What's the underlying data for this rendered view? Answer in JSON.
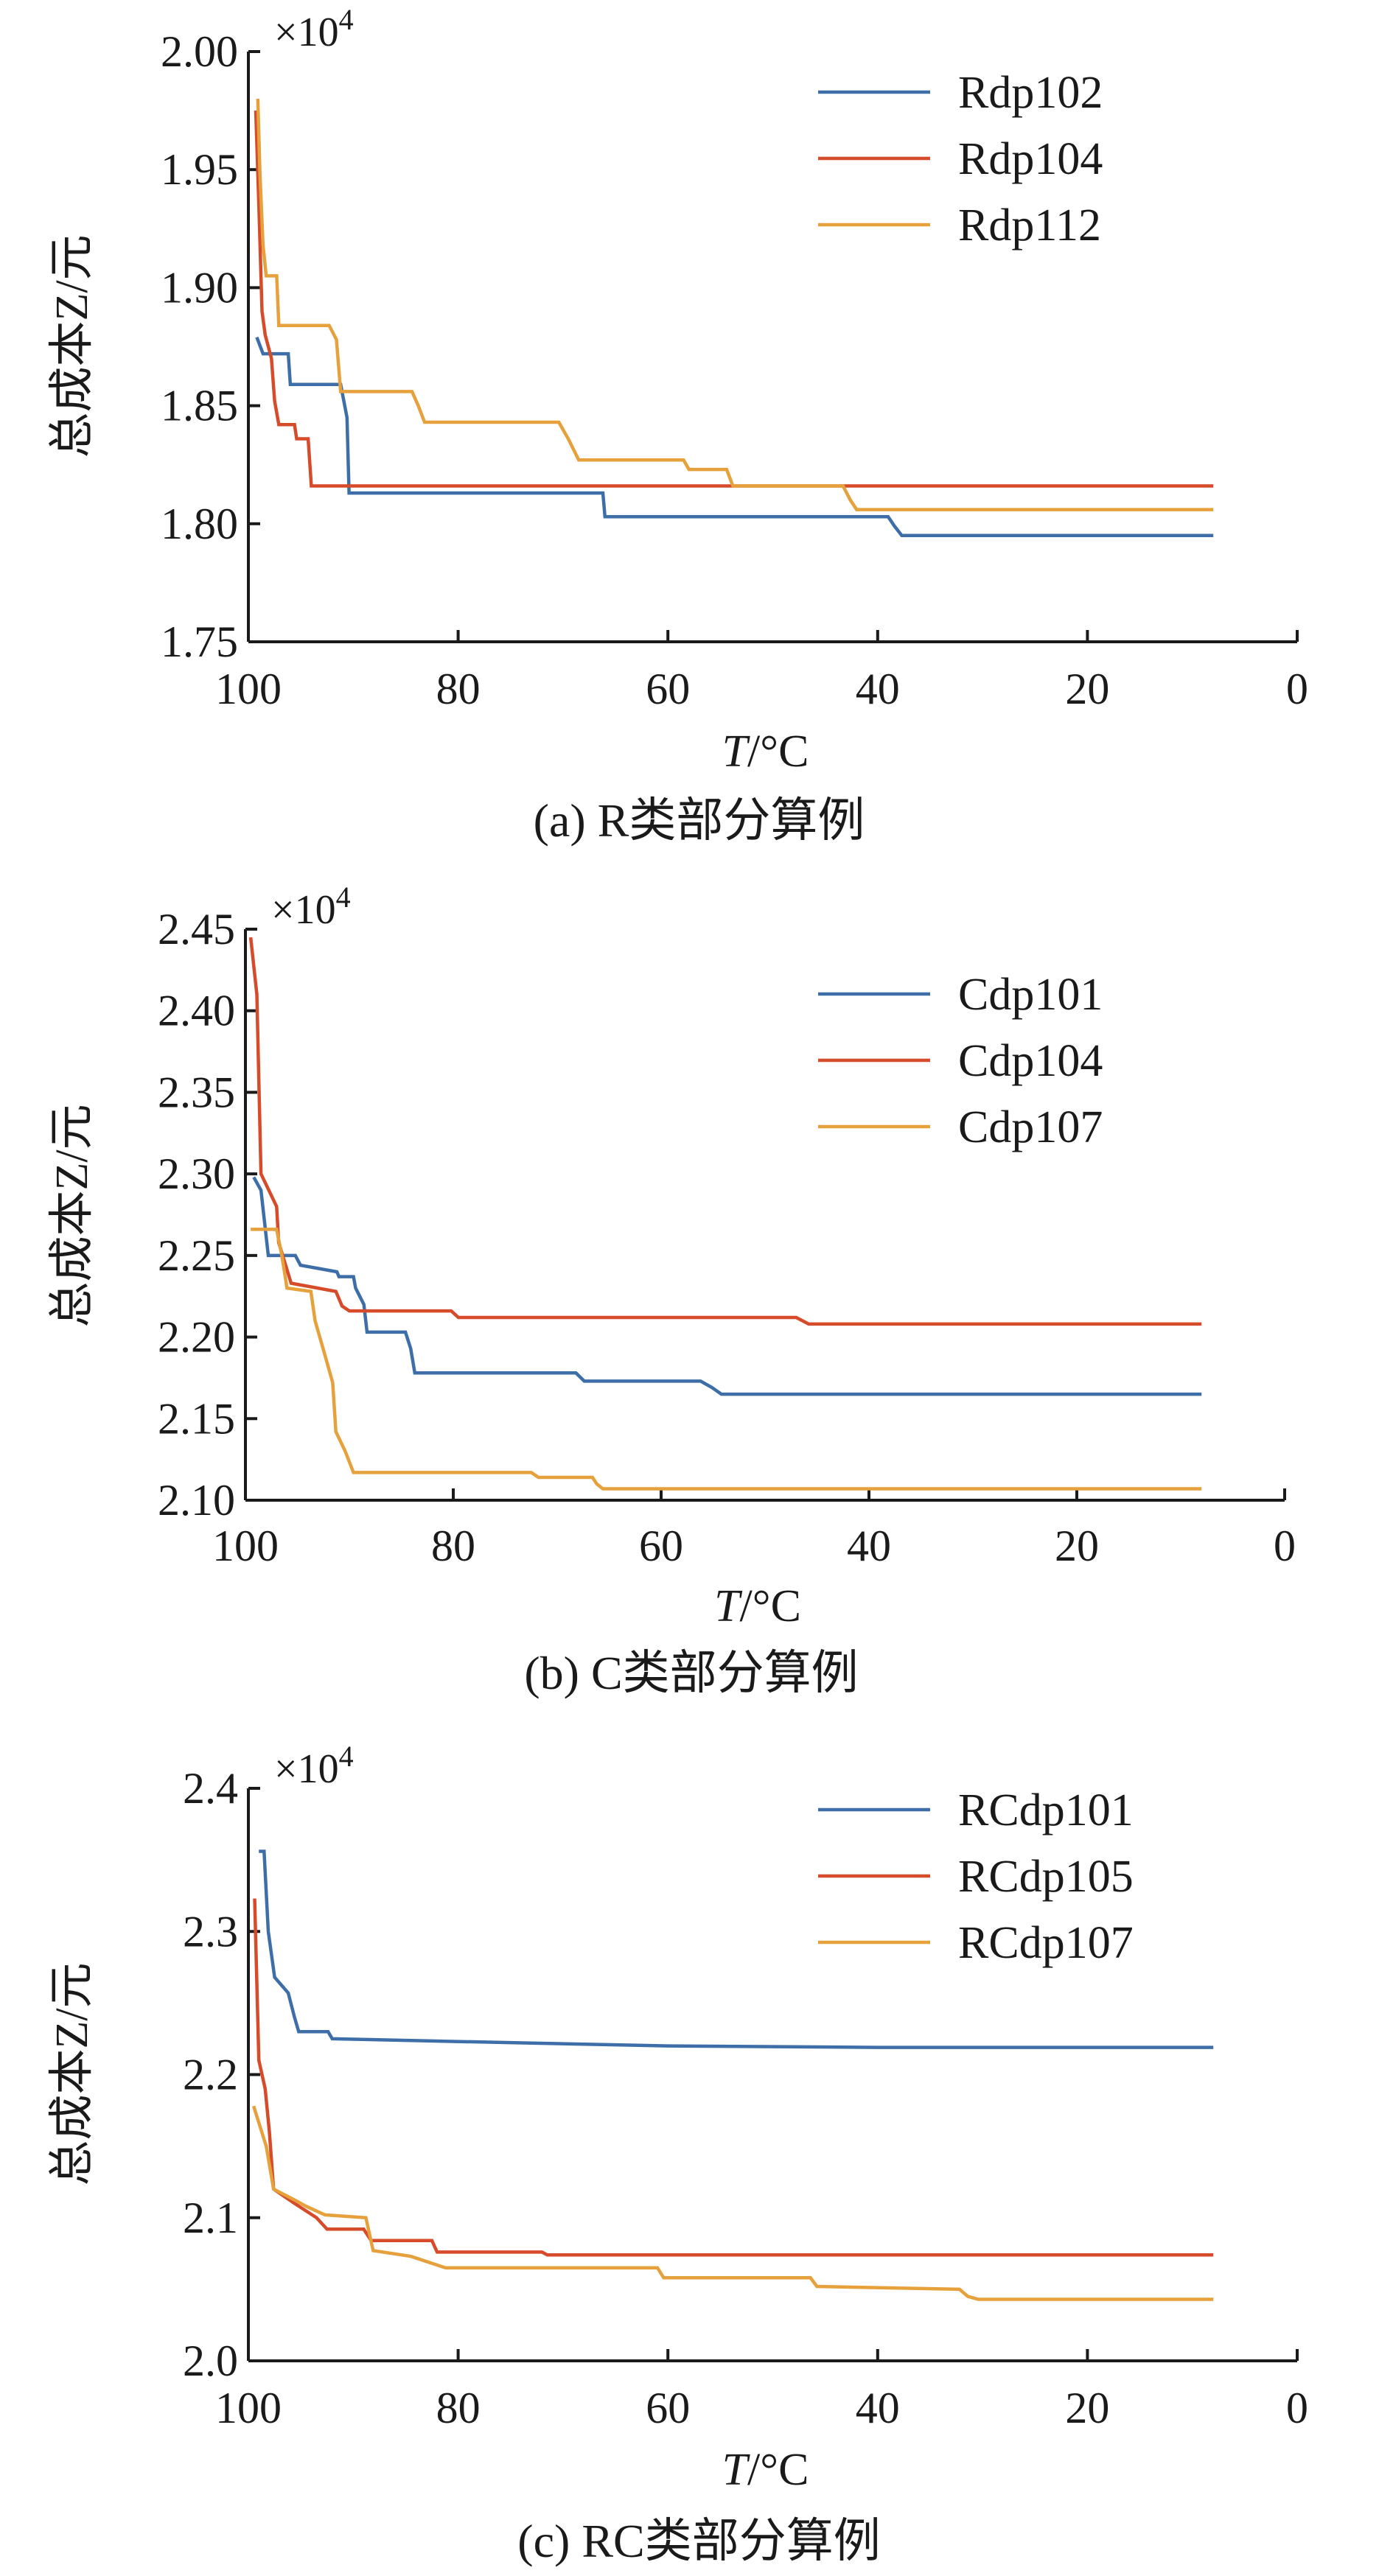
{
  "colors": {
    "blue": "#3d6ea8",
    "red": "#d64b2a",
    "yellow": "#e6a13c",
    "axis": "#1a1a1a"
  },
  "chart_data": [
    {
      "type": "line",
      "caption": "(a) R类部分算例",
      "xlabel_italic": "T",
      "xlabel_unit": "/°C",
      "ylabel": "总成本Z/元",
      "exponent_prefix": "×10",
      "exponent_power": "4",
      "xlim": [
        100,
        0
      ],
      "ylim": [
        1.75,
        2.0
      ],
      "xticks": [
        100,
        80,
        60,
        40,
        20,
        0
      ],
      "xtick_labels": [
        "100",
        "80",
        "60",
        "40",
        "20",
        "0"
      ],
      "yticks": [
        1.75,
        1.8,
        1.85,
        1.9,
        1.95,
        2.0
      ],
      "ytick_labels": [
        "1.75",
        "1.80",
        "1.85",
        "1.90",
        "1.95",
        "2.00"
      ],
      "legend_position": "top-right",
      "series": [
        {
          "name": "Rdp102",
          "color": "blue",
          "points": [
            [
              99.2,
              1.879
            ],
            [
              98.6,
              1.872
            ],
            [
              96.2,
              1.872
            ],
            [
              96,
              1.859
            ],
            [
              91.2,
              1.859
            ],
            [
              90.6,
              1.845
            ],
            [
              90.4,
              1.813
            ],
            [
              66.2,
              1.813
            ],
            [
              66,
              1.803
            ],
            [
              39,
              1.803
            ],
            [
              38.4,
              1.799
            ],
            [
              37.7,
              1.795
            ],
            [
              8,
              1.795
            ]
          ]
        },
        {
          "name": "Rdp104",
          "color": "red",
          "points": [
            [
              99.3,
              1.975
            ],
            [
              99,
              1.935
            ],
            [
              98.7,
              1.89
            ],
            [
              98.4,
              1.88
            ],
            [
              97.8,
              1.87
            ],
            [
              97.5,
              1.852
            ],
            [
              97.1,
              1.842
            ],
            [
              95.6,
              1.842
            ],
            [
              95.4,
              1.836
            ],
            [
              94.3,
              1.836
            ],
            [
              94,
              1.816
            ],
            [
              8,
              1.816
            ]
          ]
        },
        {
          "name": "Rdp112",
          "color": "yellow",
          "points": [
            [
              99.1,
              1.98
            ],
            [
              98.9,
              1.948
            ],
            [
              98.6,
              1.918
            ],
            [
              98.3,
              1.905
            ],
            [
              97.3,
              1.905
            ],
            [
              97.1,
              1.884
            ],
            [
              92.3,
              1.884
            ],
            [
              91.6,
              1.878
            ],
            [
              91.2,
              1.856
            ],
            [
              84.4,
              1.856
            ],
            [
              83.8,
              1.85
            ],
            [
              83.2,
              1.843
            ],
            [
              70.4,
              1.843
            ],
            [
              69.5,
              1.836
            ],
            [
              68.5,
              1.827
            ],
            [
              58.5,
              1.827
            ],
            [
              58,
              1.823
            ],
            [
              54.4,
              1.823
            ],
            [
              53.8,
              1.816
            ],
            [
              43.3,
              1.816
            ],
            [
              42.6,
              1.81
            ],
            [
              42,
              1.806
            ],
            [
              8,
              1.806
            ]
          ]
        }
      ]
    },
    {
      "type": "line",
      "caption": "(b) C类部分算例",
      "xlabel_italic": "T",
      "xlabel_unit": "/°C",
      "ylabel": "总成本Z/元",
      "exponent_prefix": "×10",
      "exponent_power": "4",
      "xlim": [
        100,
        0
      ],
      "ylim": [
        2.1,
        2.45
      ],
      "xticks": [
        100,
        80,
        60,
        40,
        20,
        0
      ],
      "xtick_labels": [
        "100",
        "80",
        "60",
        "40",
        "20",
        "0"
      ],
      "yticks": [
        2.1,
        2.15,
        2.2,
        2.25,
        2.3,
        2.35,
        2.4,
        2.45
      ],
      "ytick_labels": [
        "2.10",
        "2.15",
        "2.20",
        "2.25",
        "2.30",
        "2.35",
        "2.40",
        "2.45"
      ],
      "legend_position": "top-right",
      "series": [
        {
          "name": "Cdp101",
          "color": "blue",
          "points": [
            [
              99.2,
              2.298
            ],
            [
              98.5,
              2.29
            ],
            [
              97.8,
              2.25
            ],
            [
              95.2,
              2.25
            ],
            [
              94.7,
              2.244
            ],
            [
              91.2,
              2.24
            ],
            [
              91,
              2.237
            ],
            [
              89.6,
              2.237
            ],
            [
              89.4,
              2.23
            ],
            [
              88.6,
              2.22
            ],
            [
              88.3,
              2.203
            ],
            [
              84.6,
              2.203
            ],
            [
              84.1,
              2.193
            ],
            [
              83.7,
              2.178
            ],
            [
              68.2,
              2.178
            ],
            [
              67.4,
              2.173
            ],
            [
              56.2,
              2.173
            ],
            [
              55.1,
              2.169
            ],
            [
              54.2,
              2.165
            ],
            [
              8,
              2.165
            ]
          ]
        },
        {
          "name": "Cdp104",
          "color": "red",
          "points": [
            [
              99.5,
              2.445
            ],
            [
              98.9,
              2.41
            ],
            [
              98.5,
              2.3
            ],
            [
              97,
              2.28
            ],
            [
              96.8,
              2.258
            ],
            [
              95.6,
              2.233
            ],
            [
              91.3,
              2.228
            ],
            [
              90.7,
              2.219
            ],
            [
              90,
              2.216
            ],
            [
              80.2,
              2.216
            ],
            [
              79.5,
              2.212
            ],
            [
              47,
              2.212
            ],
            [
              45.8,
              2.208
            ],
            [
              8,
              2.208
            ]
          ]
        },
        {
          "name": "Cdp107",
          "color": "yellow",
          "points": [
            [
              99.5,
              2.266
            ],
            [
              97,
              2.266
            ],
            [
              96.5,
              2.25
            ],
            [
              96,
              2.23
            ],
            [
              93.7,
              2.228
            ],
            [
              93.3,
              2.21
            ],
            [
              92.4,
              2.19
            ],
            [
              91.6,
              2.172
            ],
            [
              91.3,
              2.142
            ],
            [
              90.4,
              2.13
            ],
            [
              89.6,
              2.117
            ],
            [
              72.5,
              2.117
            ],
            [
              71.8,
              2.114
            ],
            [
              66.6,
              2.114
            ],
            [
              66.2,
              2.11
            ],
            [
              65.6,
              2.107
            ],
            [
              8,
              2.107
            ]
          ]
        }
      ]
    },
    {
      "type": "line",
      "caption": "(c) RC类部分算例",
      "xlabel_italic": "T",
      "xlabel_unit": "/°C",
      "ylabel": "总成本Z/元",
      "exponent_prefix": "×10",
      "exponent_power": "4",
      "xlim": [
        100,
        0
      ],
      "ylim": [
        2.0,
        2.4
      ],
      "xticks": [
        100,
        80,
        60,
        40,
        20,
        0
      ],
      "xtick_labels": [
        "100",
        "80",
        "60",
        "40",
        "20",
        "0"
      ],
      "yticks": [
        2.0,
        2.1,
        2.2,
        2.3,
        2.4
      ],
      "ytick_labels": [
        "2.0",
        "2.1",
        "2.2",
        "2.3",
        "2.4"
      ],
      "legend_position": "top-right",
      "series": [
        {
          "name": "RCdp101",
          "color": "blue",
          "points": [
            [
              99,
              2.356
            ],
            [
              98.5,
              2.356
            ],
            [
              98.1,
              2.3
            ],
            [
              97.5,
              2.268
            ],
            [
              96.2,
              2.257
            ],
            [
              95.6,
              2.24
            ],
            [
              95.2,
              2.23
            ],
            [
              92.4,
              2.23
            ],
            [
              92,
              2.225
            ],
            [
              73,
              2.222
            ],
            [
              60,
              2.22
            ],
            [
              40,
              2.219
            ],
            [
              20,
              2.219
            ],
            [
              8,
              2.219
            ]
          ]
        },
        {
          "name": "RCdp105",
          "color": "red",
          "points": [
            [
              99.4,
              2.323
            ],
            [
              99,
              2.21
            ],
            [
              98.4,
              2.19
            ],
            [
              98,
              2.16
            ],
            [
              97.6,
              2.12
            ],
            [
              95.6,
              2.11
            ],
            [
              93.5,
              2.1
            ],
            [
              92.5,
              2.092
            ],
            [
              89,
              2.092
            ],
            [
              88.3,
              2.084
            ],
            [
              82.5,
              2.084
            ],
            [
              82,
              2.076
            ],
            [
              72,
              2.076
            ],
            [
              71.5,
              2.074
            ],
            [
              8,
              2.074
            ]
          ]
        },
        {
          "name": "RCdp107",
          "color": "yellow",
          "points": [
            [
              99.5,
              2.178
            ],
            [
              98.3,
              2.15
            ],
            [
              97.6,
              2.12
            ],
            [
              95.5,
              2.112
            ],
            [
              94.5,
              2.108
            ],
            [
              92.7,
              2.102
            ],
            [
              88.8,
              2.1
            ],
            [
              88.1,
              2.077
            ],
            [
              84.5,
              2.073
            ],
            [
              81.2,
              2.065
            ],
            [
              61,
              2.065
            ],
            [
              60.4,
              2.058
            ],
            [
              46.4,
              2.058
            ],
            [
              45.8,
              2.052
            ],
            [
              32.2,
              2.05
            ],
            [
              31.4,
              2.045
            ],
            [
              30.4,
              2.043
            ],
            [
              8,
              2.043
            ]
          ]
        }
      ]
    }
  ]
}
